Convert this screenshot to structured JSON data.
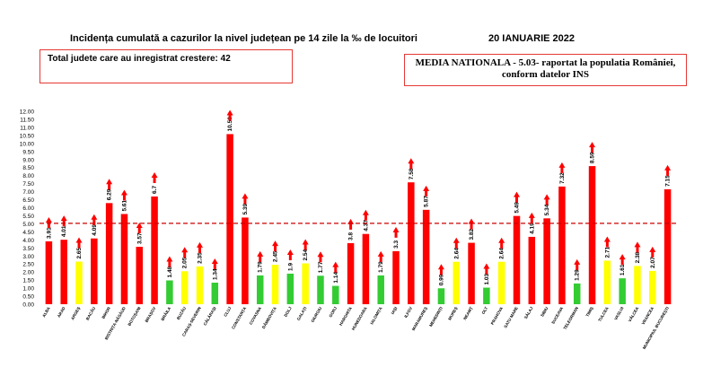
{
  "header": {
    "title": "Incidența cumulată a cazurilor la nivel județean pe 14 zile la ‰ de locuitori",
    "date": "20 IANUARIE 2022",
    "growth_box": "Total judete care au inregistrat crestere: 42",
    "national_line1": "MEDIA NATIONALA - 5.03-  raportat la populatia României,",
    "national_line2": "conform datelor INS"
  },
  "colors": {
    "red": "#ff0000",
    "yellow": "#ffff00",
    "green": "#33cc33",
    "reference": "#cc0000"
  },
  "chart_data": {
    "type": "bar",
    "categories": [
      "ALBA",
      "ARAD",
      "ARGEȘ",
      "BACĂU",
      "BIHOR",
      "BISTRIȚA-NĂSĂUD",
      "BOTOȘANI",
      "BRAȘOV",
      "BRĂILA",
      "BUZĂU",
      "CARAȘ-SEVERIN",
      "CĂLĂRAȘI",
      "CLUJ",
      "CONSTANȚA",
      "COVASNA",
      "DÂMBOVIȚA",
      "DOLJ",
      "GALAȚI",
      "GIURGIU",
      "GORJ",
      "HARGHITA",
      "HUNEDOARA",
      "IALOMIȚA",
      "IAȘI",
      "ILFOV",
      "MARAMUREȘ",
      "MEHEDINȚI",
      "MUREȘ",
      "NEAMȚ",
      "OLT",
      "PRAHOVA",
      "SATU MARE",
      "SĂLAJ",
      "SIBIU",
      "SUCEAVA",
      "TELEORMAN",
      "TIMIȘ",
      "TULCEA",
      "VASLUI",
      "VÂLCEA",
      "VRANCEA",
      "MUNICIPIUL BUCUREȘTI"
    ],
    "values": [
      3.91,
      4.01,
      2.65,
      4.09,
      6.29,
      5.61,
      3.57,
      6.7,
      1.48,
      2.05,
      2.35,
      1.34,
      10.58,
      5.39,
      1.79,
      2.45,
      1.9,
      2.54,
      1.77,
      1.14,
      3.8,
      4.37,
      1.79,
      3.3,
      7.58,
      5.87,
      0.99,
      2.64,
      3.82,
      1.03,
      2.64,
      5.49,
      4.19,
      5.34,
      7.32,
      1.29,
      8.59,
      2.71,
      1.61,
      2.38,
      2.07,
      7.15
    ],
    "value_labels": [
      "3.91",
      "4.01",
      "2.65",
      "4.09",
      "6.29",
      "5.61",
      "3.57",
      "6.7",
      "1.48",
      "2.05",
      "2.35",
      "1.34",
      "10.58",
      "5.39",
      "1.79",
      "2.45",
      "1.9",
      "2.54",
      "1.77",
      "1.14",
      "3.8",
      "4.37",
      "1.79",
      "3.3",
      "7.58",
      "5.87",
      "0.99",
      "2.64",
      "3.82",
      "1.03",
      "2.64",
      "5.49",
      "4.19",
      "5.34",
      "7.32",
      "1.29",
      "8.59",
      "2.71",
      "1.61",
      "2.38",
      "2.07",
      "7.15"
    ],
    "bar_colors": [
      "red",
      "red",
      "yellow",
      "red",
      "red",
      "red",
      "red",
      "red",
      "green",
      "yellow",
      "yellow",
      "green",
      "red",
      "red",
      "green",
      "yellow",
      "green",
      "yellow",
      "green",
      "green",
      "red",
      "red",
      "green",
      "red",
      "red",
      "red",
      "green",
      "yellow",
      "red",
      "green",
      "yellow",
      "red",
      "red",
      "red",
      "red",
      "green",
      "red",
      "yellow",
      "green",
      "yellow",
      "yellow",
      "red"
    ],
    "yticks": [
      "0.00",
      "0.50",
      "1.00",
      "1.50",
      "2.00",
      "2.50",
      "3.00",
      "3.50",
      "4.00",
      "4.50",
      "5.00",
      "5.50",
      "6.00",
      "6.50",
      "7.00",
      "7.50",
      "8.00",
      "8.50",
      "9.00",
      "9.50",
      "10.00",
      "10.50",
      "11.00",
      "11.50",
      "12.00"
    ],
    "ylim": [
      0,
      12
    ],
    "reference_line": 5.03,
    "increase_arrows": "all"
  }
}
